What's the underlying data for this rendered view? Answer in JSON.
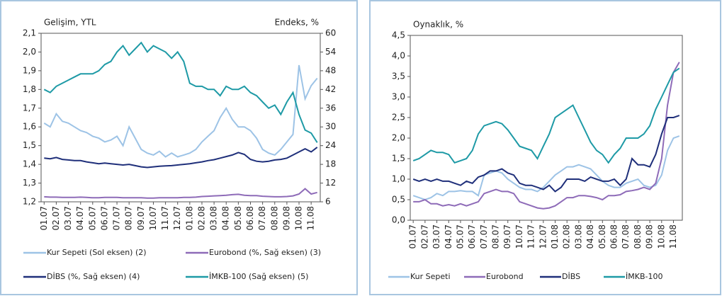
{
  "chart_data": [
    {
      "type": "line",
      "title": "Gelişim, YTL",
      "y2label": "Endeks, %",
      "categories": [
        "01.07",
        null,
        "02.07",
        null,
        "03.07",
        null,
        "04.07",
        null,
        "05.07",
        null,
        "06.07",
        null,
        "07.07",
        null,
        "08.07",
        null,
        "09.07",
        null,
        "10.07",
        null,
        "11.07",
        null,
        "12.07",
        null,
        "01.08",
        null,
        "02.08",
        null,
        "03.08",
        null,
        "04.08",
        null,
        "05.08",
        null,
        "06.08",
        null,
        "07.08",
        null,
        "08.08",
        null,
        "09.08",
        null,
        "10.08",
        null,
        "11.08",
        null
      ],
      "ylim": [
        1.2,
        2.1
      ],
      "yticks": [
        {
          "value": 1.2,
          "label": "1,2"
        },
        {
          "value": 1.3,
          "label": "1,3"
        },
        {
          "value": 1.4,
          "label": "1,4"
        },
        {
          "value": 1.5,
          "label": "1,5"
        },
        {
          "value": 1.6,
          "label": "1,6"
        },
        {
          "value": 1.7,
          "label": "1,7"
        },
        {
          "value": 1.8,
          "label": "1,8"
        },
        {
          "value": 1.9,
          "label": "1,9"
        },
        {
          "value": 2.0,
          "label": "2,0"
        },
        {
          "value": 2.1,
          "label": "2,1"
        }
      ],
      "y2lim": [
        6,
        60
      ],
      "y2ticks": [
        6,
        12,
        18,
        24,
        30,
        36,
        42,
        48,
        54,
        60
      ],
      "series": [
        {
          "name": "Kur Sepeti (Sol eksen) (2)",
          "color": "#9dc3e6",
          "values": [
            1.62,
            1.6,
            1.67,
            1.63,
            1.62,
            1.6,
            1.58,
            1.57,
            1.55,
            1.54,
            1.52,
            1.53,
            1.55,
            1.5,
            1.6,
            1.54,
            1.48,
            1.46,
            1.45,
            1.47,
            1.44,
            1.46,
            1.44,
            1.45,
            1.46,
            1.48,
            1.52,
            1.55,
            1.58,
            1.65,
            1.7,
            1.64,
            1.6,
            1.6,
            1.58,
            1.54,
            1.48,
            1.46,
            1.45,
            1.48,
            1.52,
            1.56,
            1.93,
            1.75,
            1.82,
            1.86
          ]
        },
        {
          "name": "Eurobond (%, Sağ eksen) (3)",
          "color": "#8e6bb8",
          "axis": "y2",
          "values": [
            7.6,
            7.5,
            7.5,
            7.4,
            7.4,
            7.4,
            7.5,
            7.4,
            7.3,
            7.3,
            7.4,
            7.4,
            7.4,
            7.3,
            7.3,
            7.3,
            7.3,
            7.2,
            7.2,
            7.3,
            7.3,
            7.3,
            7.3,
            7.4,
            7.4,
            7.5,
            7.7,
            7.8,
            7.9,
            8.0,
            8.1,
            8.3,
            8.4,
            8.1,
            8.0,
            8.0,
            7.8,
            7.7,
            7.6,
            7.6,
            7.7,
            7.9,
            8.5,
            10.2,
            8.5,
            9.0
          ]
        },
        {
          "name": "DİBS (%, Sağ eksen) (4)",
          "color": "#1f2f7a",
          "axis": "y2",
          "values": [
            20,
            19.8,
            20.2,
            19.6,
            19.4,
            19.2,
            19.2,
            18.8,
            18.5,
            18.2,
            18.4,
            18.2,
            18.0,
            17.8,
            18.0,
            17.6,
            17.2,
            17.0,
            17.2,
            17.4,
            17.5,
            17.6,
            17.8,
            18.0,
            18.2,
            18.5,
            18.8,
            19.2,
            19.5,
            20.0,
            20.5,
            21.0,
            21.8,
            21.2,
            19.6,
            19.0,
            18.8,
            19.0,
            19.4,
            19.6,
            20.0,
            21.0,
            22.0,
            23.0,
            22.0,
            23.5
          ]
        },
        {
          "name": "İMKB-100 (Sağ eksen) (5)",
          "color": "#1e9aa6",
          "axis": "y2",
          "values": [
            42,
            41,
            43,
            44,
            45,
            46,
            47,
            47,
            47,
            48,
            50,
            51,
            54,
            56,
            53,
            55,
            57,
            54,
            56,
            55,
            54,
            52,
            54,
            51,
            44,
            43,
            43,
            42,
            42,
            40,
            43,
            42,
            42,
            43,
            41,
            40,
            38,
            36,
            37,
            34,
            38,
            41,
            34,
            29,
            28,
            25
          ]
        }
      ]
    },
    {
      "type": "line",
      "title": "Oynaklık, %",
      "categories": [
        "01.07",
        null,
        "02.07",
        null,
        "03.07",
        null,
        "04.07",
        null,
        "05.07",
        null,
        "06.07",
        null,
        "07.07",
        null,
        "08.07",
        null,
        "09.07",
        null,
        "10.07",
        null,
        "11.07",
        null,
        "12.07",
        null,
        "01.08",
        null,
        "02.08",
        null,
        "03.08",
        null,
        "04.08",
        null,
        "05.08",
        null,
        "06.08",
        null,
        "07.08",
        null,
        "08.08",
        null,
        "09.08",
        null,
        "10.08",
        null,
        "11.08",
        null
      ],
      "ylim": [
        0,
        4.5
      ],
      "yticks": [
        {
          "value": 0,
          "label": "0,0"
        },
        {
          "value": 0.5,
          "label": "0,5"
        },
        {
          "value": 1.0,
          "label": "1,0"
        },
        {
          "value": 1.5,
          "label": "1,5"
        },
        {
          "value": 2.0,
          "label": "2,0"
        },
        {
          "value": 2.5,
          "label": "2,5"
        },
        {
          "value": 3.0,
          "label": "3,0"
        },
        {
          "value": 3.5,
          "label": "3,5"
        },
        {
          "value": 4.0,
          "label": "4,0"
        },
        {
          "value": 4.5,
          "label": "4,5"
        }
      ],
      "series": [
        {
          "name": "Kur Sepeti",
          "color": "#9dc3e6",
          "values": [
            0.6,
            0.55,
            0.5,
            0.55,
            0.65,
            0.6,
            0.7,
            0.7,
            0.72,
            0.7,
            0.7,
            0.6,
            1.1,
            1.15,
            1.2,
            1.15,
            1.0,
            0.9,
            0.8,
            0.75,
            0.75,
            0.7,
            0.8,
            0.95,
            1.1,
            1.2,
            1.3,
            1.3,
            1.35,
            1.3,
            1.25,
            1.1,
            0.95,
            0.85,
            0.8,
            0.8,
            0.9,
            0.95,
            1.0,
            0.85,
            0.8,
            0.85,
            1.1,
            1.7,
            2.0,
            2.05
          ]
        },
        {
          "name": "Eurobond",
          "color": "#8e6bb8",
          "values": [
            0.45,
            0.45,
            0.5,
            0.4,
            0.4,
            0.35,
            0.38,
            0.35,
            0.4,
            0.35,
            0.4,
            0.45,
            0.65,
            0.7,
            0.75,
            0.7,
            0.7,
            0.65,
            0.45,
            0.4,
            0.35,
            0.3,
            0.28,
            0.3,
            0.35,
            0.45,
            0.55,
            0.55,
            0.6,
            0.6,
            0.58,
            0.55,
            0.5,
            0.6,
            0.6,
            0.62,
            0.7,
            0.72,
            0.75,
            0.8,
            0.75,
            0.9,
            1.5,
            2.8,
            3.6,
            3.85
          ]
        },
        {
          "name": "DİBS",
          "color": "#1f2f7a",
          "values": [
            1.0,
            0.95,
            1.0,
            0.95,
            1.0,
            0.95,
            0.95,
            0.9,
            0.85,
            0.95,
            0.9,
            1.05,
            1.1,
            1.2,
            1.2,
            1.25,
            1.15,
            1.1,
            0.9,
            0.85,
            0.85,
            0.8,
            0.75,
            0.85,
            0.7,
            0.8,
            1.0,
            1.0,
            1.0,
            0.95,
            1.05,
            1.0,
            0.95,
            0.95,
            1.0,
            0.85,
            1.0,
            1.5,
            1.35,
            1.35,
            1.3,
            1.6,
            2.1,
            2.5,
            2.5,
            2.55
          ]
        },
        {
          "name": "İMKB-100",
          "color": "#1e9aa6",
          "values": [
            1.45,
            1.5,
            1.6,
            1.7,
            1.65,
            1.65,
            1.6,
            1.4,
            1.45,
            1.5,
            1.7,
            2.1,
            2.3,
            2.35,
            2.4,
            2.35,
            2.2,
            2.0,
            1.8,
            1.75,
            1.7,
            1.5,
            1.8,
            2.1,
            2.5,
            2.6,
            2.7,
            2.8,
            2.5,
            2.2,
            1.9,
            1.7,
            1.6,
            1.4,
            1.6,
            1.75,
            2.0,
            2.0,
            2.0,
            2.1,
            2.3,
            2.7,
            3.0,
            3.3,
            3.6,
            3.7
          ]
        }
      ]
    }
  ]
}
